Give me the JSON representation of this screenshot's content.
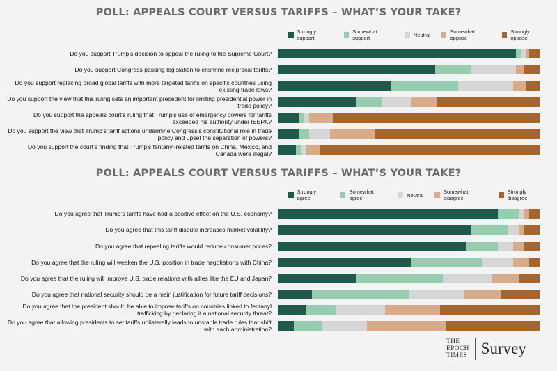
{
  "colors": {
    "strong_pos": "#1e5a4c",
    "some_pos": "#96cdb0",
    "neutral": "#d6d6d6",
    "some_neg": "#d9ab8a",
    "strong_neg": "#a6652c"
  },
  "chart_data": [
    {
      "type": "bar",
      "stacked": true,
      "orientation": "horizontal",
      "title": "POLL: APPEALS COURT VERSUS TARIFFS – WHAT’S YOUR TAKE?",
      "legend": [
        "Strongly support",
        "Somewhat support",
        "Neutral",
        "Somewhat oppose",
        "Strongly oppose"
      ],
      "legend_position": "top-right",
      "categories": [
        "Do you support Trump’s decision to appeal the ruling to the Supreme Court?",
        "Do you support Congress passing legislation to enshrine reciprocal tariffs?",
        "Do you support replacing broad global tariffs with more targeted tariffs on specific countries using existing trade laws?",
        "Do you support the view that this ruling sets an important precedent for limiting presidential power in trade policy?",
        "Do you support the appeals court’s ruling that Trump’s use of emergency powers for tariffs exceeded his authority under IEEPA?",
        "Do you support the view that Trump’s tariff actions undermine Congress’s constitutional role in trade policy and upset the separation of powers?",
        "Do you support the court’s finding that Trump’s fentanyl-related tariffs on China, Mexico, and Canada were illegal?"
      ],
      "series": [
        {
          "name": "Strongly support",
          "values": [
            91,
            60,
            43,
            30,
            8,
            8,
            7
          ]
        },
        {
          "name": "Somewhat support",
          "values": [
            2,
            14,
            26,
            10,
            2,
            4,
            2
          ]
        },
        {
          "name": "Neutral",
          "values": [
            2,
            17,
            21,
            11,
            2,
            8,
            2
          ]
        },
        {
          "name": "Somewhat oppose",
          "values": [
            1,
            3,
            5,
            10,
            9,
            17,
            5
          ]
        },
        {
          "name": "Strongly oppose",
          "values": [
            4,
            6,
            5,
            39,
            79,
            63,
            84
          ]
        }
      ],
      "xlim": [
        0,
        100
      ]
    },
    {
      "type": "bar",
      "stacked": true,
      "orientation": "horizontal",
      "title": "POLL: APPEALS COURT VERSUS TARIFFS – WHAT’S YOUR TAKE?",
      "legend": [
        "Strongly agree",
        "Somewhat agree",
        "Neutral",
        "Somewhat disagree",
        "Strongly disagree"
      ],
      "legend_position": "top-right",
      "categories": [
        "Do you agree that Trump’s tariffs have had a positive effect on the U.S. economy?",
        "Do you agree that this tariff dispute increases market volatility?",
        "Do you agree that repealing tariffs would reduce consumer prices?",
        "Do you agree that the ruling will weaken the U.S. position in trade negotiations with China?",
        "Do you agree that the ruling will improve U.S. trade relations with allies like the EU and Japan?",
        "Do you agree that national security should be a main justification for future tariff decisions?",
        "Do you agree that the president should be able to impose tariffs on countries linked to fentanyl trafficking by declaring it a national security threat?",
        "Do you agree that allowing presidents to set tariffs unilaterally leads to unstable trade rules that shift with each administration?"
      ],
      "series": [
        {
          "name": "Strongly agree",
          "values": [
            84,
            74,
            72,
            51,
            30,
            13,
            11,
            6
          ]
        },
        {
          "name": "Somewhat agree",
          "values": [
            8,
            14,
            12,
            27,
            33,
            37,
            11,
            11
          ]
        },
        {
          "name": "Neutral",
          "values": [
            2,
            4,
            6,
            12,
            19,
            21,
            19,
            17
          ]
        },
        {
          "name": "Somewhat disagree",
          "values": [
            2,
            2,
            4,
            6,
            10,
            14,
            21,
            30
          ]
        },
        {
          "name": "Strongly disagree",
          "values": [
            4,
            6,
            6,
            4,
            8,
            15,
            38,
            36
          ]
        }
      ],
      "xlim": [
        0,
        100
      ]
    }
  ],
  "branding": {
    "logo_line1": "THE",
    "logo_line2": "EPOCH",
    "logo_line3": "TIMES",
    "logo_right": "Survey"
  }
}
